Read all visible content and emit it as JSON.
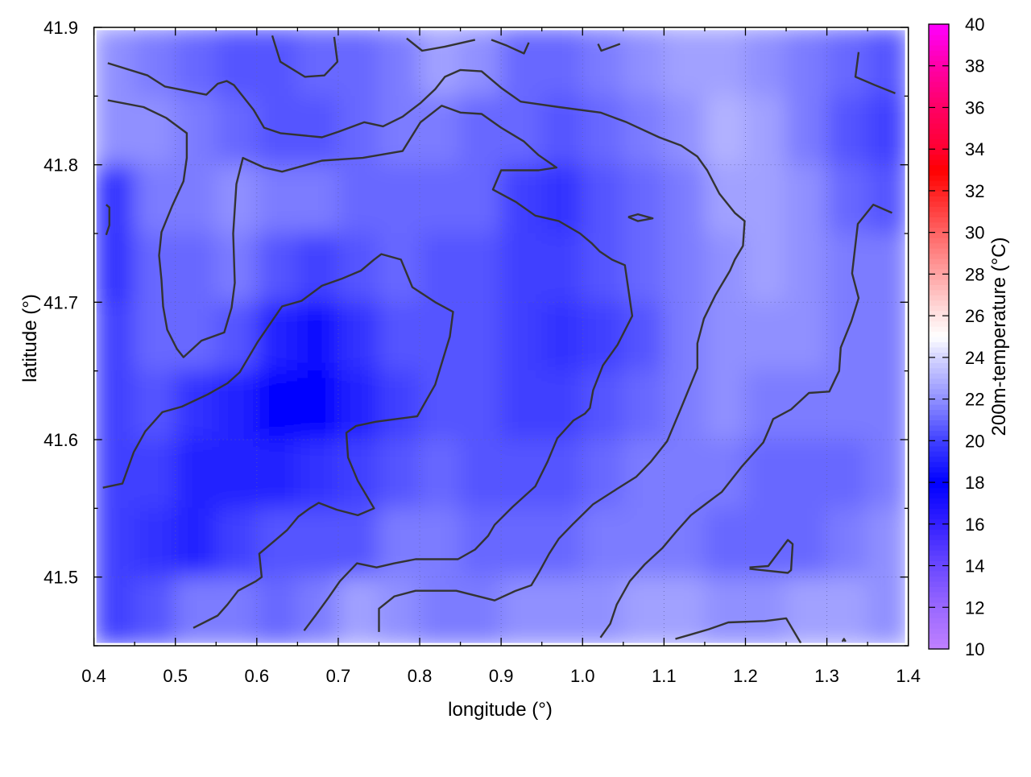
{
  "chart_data": {
    "type": "heatmap",
    "title": "",
    "xlabel": "longitude (°)",
    "ylabel": "latitude (°)",
    "colorbar_label": "200m-temperature (°C)",
    "xlim": [
      0.4,
      1.4
    ],
    "ylim": [
      41.45,
      41.9
    ],
    "clim": [
      10,
      40
    ],
    "grid": true,
    "x_ticks": [
      "0.4",
      "0.5",
      "0.6",
      "0.7",
      "0.8",
      "0.9",
      "1.0",
      "1.1",
      "1.2",
      "1.3",
      "1.4"
    ],
    "y_ticks": [
      "41.5",
      "41.6",
      "41.7",
      "41.8",
      "41.9"
    ],
    "colorbar_ticks": [
      "10",
      "12",
      "14",
      "16",
      "18",
      "20",
      "22",
      "24",
      "26",
      "28",
      "30",
      "32",
      "34",
      "36",
      "38",
      "40"
    ],
    "palette": [
      [
        10,
        "#c080ff"
      ],
      [
        12,
        "#9a68ff"
      ],
      [
        14,
        "#6a48ff"
      ],
      [
        16,
        "#3420ff"
      ],
      [
        18,
        "#0000ff"
      ],
      [
        20,
        "#4040ff"
      ],
      [
        22,
        "#9090ff"
      ],
      [
        24,
        "#d4d4ff"
      ],
      [
        25,
        "#ffffff"
      ],
      [
        26,
        "#ffe4e4"
      ],
      [
        28,
        "#ffa4a4"
      ],
      [
        30,
        "#ff6464"
      ],
      [
        32,
        "#ff2020"
      ],
      [
        33,
        "#ff0000"
      ],
      [
        34,
        "#ff0030"
      ],
      [
        36,
        "#ff0064"
      ],
      [
        38,
        "#ff00a8"
      ],
      [
        40,
        "#ff00ff"
      ]
    ],
    "grid_lon": [
      0.425,
      0.475,
      0.525,
      0.575,
      0.625,
      0.675,
      0.725,
      0.775,
      0.825,
      0.875,
      0.925,
      0.975,
      1.025,
      1.075,
      1.125,
      1.175,
      1.225,
      1.275,
      1.325,
      1.375
    ],
    "grid_lat": [
      41.875,
      41.825,
      41.775,
      41.725,
      41.675,
      41.625,
      41.575,
      41.525,
      41.475
    ],
    "values": [
      [
        22,
        21.5,
        21,
        20.5,
        20.5,
        21,
        21,
        21.5,
        22.5,
        22,
        21,
        21,
        21.5,
        22,
        22.5,
        22.5,
        22,
        21.5,
        21,
        20.5
      ],
      [
        22,
        22,
        21.5,
        21,
        20.5,
        20.5,
        21,
        21.5,
        21.5,
        21,
        21,
        20.5,
        21,
        21.5,
        22,
        23,
        22.5,
        21.5,
        20.5,
        20
      ],
      [
        19.5,
        21.5,
        21.5,
        22,
        21.5,
        21.5,
        21,
        21,
        21,
        21,
        20,
        19.5,
        20.5,
        21,
        21.5,
        22.5,
        22.5,
        22,
        21,
        20.5
      ],
      [
        19.5,
        21,
        21,
        21.5,
        20.5,
        20,
        20.5,
        21,
        20.5,
        20.5,
        20,
        20,
        20.5,
        21,
        21.5,
        22,
        22.5,
        22,
        21.5,
        21.5
      ],
      [
        20,
        21,
        21,
        20.5,
        19,
        18.5,
        19.5,
        20.5,
        20.5,
        20.5,
        20,
        19.5,
        20,
        20.5,
        21.5,
        22,
        22,
        22,
        21.5,
        21.5
      ],
      [
        20,
        20.5,
        19.5,
        19,
        18,
        18,
        19,
        20,
        20.5,
        20.5,
        20,
        20,
        20.5,
        21,
        21.5,
        22,
        21.5,
        21.5,
        21.5,
        21.5
      ],
      [
        20,
        20,
        19,
        19,
        19,
        19.5,
        20,
        20.5,
        21,
        20.5,
        20.5,
        20.5,
        21,
        21.5,
        21.5,
        21.5,
        21,
        21,
        21,
        21.5
      ],
      [
        20,
        19.5,
        19,
        20,
        20.5,
        20.5,
        20.5,
        21.5,
        21.5,
        21,
        21,
        21,
        21.5,
        21.5,
        21.5,
        21,
        21,
        21,
        21.5,
        22
      ],
      [
        20,
        20.5,
        21.5,
        21.5,
        21,
        21.5,
        22.5,
        22,
        21.5,
        21.5,
        22,
        22,
        22,
        22.5,
        22.5,
        22,
        22,
        22.5,
        22.5,
        22
      ]
    ],
    "contour_color": "#333333",
    "contours": [
      [
        [
          0.417,
          41.874
        ],
        [
          0.466,
          41.865
        ],
        [
          0.487,
          41.857
        ],
        [
          0.538,
          41.851
        ],
        [
          0.552,
          41.859
        ],
        [
          0.563,
          41.861
        ],
        [
          0.572,
          41.858
        ],
        [
          0.596,
          41.84
        ],
        [
          0.609,
          41.827
        ],
        [
          0.629,
          41.823
        ],
        [
          0.68,
          41.82
        ],
        [
          0.7,
          41.824
        ],
        [
          0.732,
          41.831
        ],
        [
          0.755,
          41.828
        ],
        [
          0.779,
          41.835
        ],
        [
          0.801,
          41.845
        ],
        [
          0.819,
          41.855
        ],
        [
          0.831,
          41.864
        ],
        [
          0.85,
          41.869
        ],
        [
          0.876,
          41.868
        ],
        [
          0.9,
          41.856
        ],
        [
          0.924,
          41.846
        ],
        [
          0.971,
          41.842
        ],
        [
          1.022,
          41.838
        ],
        [
          1.054,
          41.831
        ],
        [
          1.094,
          41.82
        ],
        [
          1.121,
          41.814
        ],
        [
          1.141,
          41.806
        ],
        [
          1.153,
          41.796
        ],
        [
          1.168,
          41.779
        ],
        [
          1.187,
          41.765
        ],
        [
          1.199,
          41.759
        ],
        [
          1.197,
          41.741
        ],
        [
          1.187,
          41.731
        ],
        [
          1.181,
          41.723
        ],
        [
          1.163,
          41.705
        ],
        [
          1.149,
          41.688
        ],
        [
          1.141,
          41.67
        ],
        [
          1.141,
          41.652
        ],
        [
          1.121,
          41.623
        ],
        [
          1.104,
          41.599
        ],
        [
          1.084,
          41.584
        ],
        [
          1.066,
          41.573
        ],
        [
          1.042,
          41.564
        ],
        [
          1.013,
          41.553
        ],
        [
          0.989,
          41.539
        ],
        [
          0.971,
          41.528
        ],
        [
          0.959,
          41.517
        ],
        [
          0.947,
          41.504
        ],
        [
          0.937,
          41.494
        ],
        [
          0.918,
          41.49
        ],
        [
          0.892,
          41.483
        ],
        [
          0.845,
          41.49
        ],
        [
          0.795,
          41.49
        ],
        [
          0.769,
          41.486
        ],
        [
          0.75,
          41.477
        ],
        [
          0.75,
          41.46
        ]
      ],
      [
        [
          0.417,
          41.847
        ],
        [
          0.461,
          41.842
        ],
        [
          0.489,
          41.834
        ],
        [
          0.514,
          41.823
        ],
        [
          0.514,
          41.805
        ],
        [
          0.51,
          41.788
        ],
        [
          0.496,
          41.77
        ],
        [
          0.483,
          41.751
        ],
        [
          0.48,
          41.734
        ],
        [
          0.483,
          41.716
        ],
        [
          0.485,
          41.697
        ],
        [
          0.49,
          41.68
        ],
        [
          0.502,
          41.666
        ],
        [
          0.51,
          41.66
        ],
        [
          0.532,
          41.672
        ],
        [
          0.56,
          41.678
        ],
        [
          0.569,
          41.696
        ],
        [
          0.573,
          41.714
        ],
        [
          0.571,
          41.75
        ],
        [
          0.575,
          41.786
        ],
        [
          0.583,
          41.805
        ],
        [
          0.609,
          41.798
        ],
        [
          0.631,
          41.795
        ],
        [
          0.68,
          41.803
        ],
        [
          0.73,
          41.805
        ],
        [
          0.779,
          41.81
        ],
        [
          0.801,
          41.831
        ],
        [
          0.827,
          41.843
        ],
        [
          0.85,
          41.838
        ],
        [
          0.876,
          41.837
        ],
        [
          0.9,
          41.827
        ],
        [
          0.928,
          41.817
        ],
        [
          0.946,
          41.807
        ],
        [
          0.968,
          41.798
        ],
        [
          0.946,
          41.796
        ],
        [
          0.9,
          41.796
        ],
        [
          0.89,
          41.782
        ],
        [
          0.918,
          41.773
        ],
        [
          0.942,
          41.763
        ],
        [
          0.971,
          41.759
        ],
        [
          0.997,
          41.75
        ],
        [
          1.011,
          41.743
        ],
        [
          1.021,
          41.737
        ],
        [
          1.036,
          41.731
        ],
        [
          1.052,
          41.727
        ],
        [
          1.061,
          41.69
        ],
        [
          1.043,
          41.669
        ],
        [
          1.025,
          41.654
        ],
        [
          1.013,
          41.636
        ],
        [
          1.009,
          41.623
        ],
        [
          1.003,
          41.619
        ],
        [
          0.989,
          41.614
        ],
        [
          0.969,
          41.601
        ],
        [
          0.957,
          41.584
        ],
        [
          0.942,
          41.566
        ],
        [
          0.914,
          41.551
        ],
        [
          0.892,
          41.538
        ],
        [
          0.884,
          41.53
        ],
        [
          0.868,
          41.52
        ],
        [
          0.847,
          41.513
        ],
        [
          0.795,
          41.513
        ],
        [
          0.769,
          41.51
        ],
        [
          0.747,
          41.507
        ],
        [
          0.723,
          41.51
        ],
        [
          0.702,
          41.497
        ],
        [
          0.688,
          41.485
        ],
        [
          0.672,
          41.472
        ],
        [
          0.658,
          41.461
        ]
      ],
      [
        [
          0.411,
          41.565
        ],
        [
          0.435,
          41.568
        ],
        [
          0.449,
          41.591
        ],
        [
          0.463,
          41.606
        ],
        [
          0.484,
          41.62
        ],
        [
          0.508,
          41.624
        ],
        [
          0.54,
          41.633
        ],
        [
          0.564,
          41.641
        ],
        [
          0.579,
          41.649
        ],
        [
          0.601,
          41.671
        ],
        [
          0.631,
          41.697
        ],
        [
          0.655,
          41.701
        ],
        [
          0.68,
          41.712
        ],
        [
          0.704,
          41.717
        ],
        [
          0.728,
          41.723
        ],
        [
          0.744,
          41.731
        ],
        [
          0.753,
          41.735
        ],
        [
          0.777,
          41.731
        ],
        [
          0.791,
          41.711
        ],
        [
          0.819,
          41.7
        ],
        [
          0.841,
          41.693
        ],
        [
          0.837,
          41.675
        ],
        [
          0.819,
          41.64
        ],
        [
          0.797,
          41.617
        ],
        [
          0.771,
          41.615
        ],
        [
          0.746,
          41.613
        ],
        [
          0.722,
          41.61
        ],
        [
          0.71,
          41.605
        ],
        [
          0.712,
          41.587
        ],
        [
          0.724,
          41.57
        ],
        [
          0.744,
          41.55
        ],
        [
          0.724,
          41.545
        ],
        [
          0.698,
          41.549
        ],
        [
          0.676,
          41.554
        ],
        [
          0.665,
          41.55
        ],
        [
          0.651,
          41.544
        ],
        [
          0.637,
          41.534
        ],
        [
          0.621,
          41.526
        ],
        [
          0.603,
          41.517
        ],
        [
          0.606,
          41.5
        ],
        [
          0.599,
          41.497
        ],
        [
          0.577,
          41.49
        ],
        [
          0.564,
          41.48
        ],
        [
          0.552,
          41.472
        ],
        [
          0.522,
          41.463
        ]
      ],
      [
        [
          1.38,
          41.765
        ],
        [
          1.357,
          41.771
        ],
        [
          1.338,
          41.757
        ],
        [
          1.331,
          41.721
        ],
        [
          1.339,
          41.703
        ],
        [
          1.33,
          41.686
        ],
        [
          1.317,
          41.667
        ],
        [
          1.315,
          41.65
        ],
        [
          1.303,
          41.635
        ],
        [
          1.278,
          41.634
        ],
        [
          1.256,
          41.622
        ],
        [
          1.234,
          41.615
        ],
        [
          1.23,
          41.609
        ],
        [
          1.222,
          41.598
        ],
        [
          1.195,
          41.58
        ],
        [
          1.171,
          41.562
        ],
        [
          1.153,
          41.554
        ],
        [
          1.133,
          41.545
        ],
        [
          1.115,
          41.533
        ],
        [
          1.098,
          41.521
        ],
        [
          1.076,
          41.509
        ],
        [
          1.058,
          41.497
        ],
        [
          1.042,
          41.48
        ],
        [
          1.034,
          41.466
        ],
        [
          1.022,
          41.456
        ]
      ],
      [
        [
          0.619,
          41.894
        ],
        [
          0.629,
          41.875
        ],
        [
          0.659,
          41.864
        ],
        [
          0.683,
          41.865
        ],
        [
          0.699,
          41.875
        ],
        [
          0.695,
          41.893
        ]
      ],
      [
        [
          0.784,
          41.892
        ],
        [
          0.803,
          41.883
        ],
        [
          0.831,
          41.886
        ],
        [
          0.868,
          41.891
        ]
      ],
      [
        [
          0.888,
          41.891
        ],
        [
          0.906,
          41.887
        ],
        [
          0.928,
          41.881
        ],
        [
          0.934,
          41.889
        ]
      ],
      [
        [
          1.019,
          41.888
        ],
        [
          1.023,
          41.883
        ],
        [
          1.046,
          41.888
        ]
      ],
      [
        [
          1.339,
          41.882
        ],
        [
          1.335,
          41.864
        ],
        [
          1.359,
          41.858
        ],
        [
          1.384,
          41.852
        ]
      ],
      [
        [
          0.415,
          41.771
        ],
        [
          0.419,
          41.769
        ],
        [
          0.419,
          41.756
        ],
        [
          0.415,
          41.749
        ]
      ],
      [
        [
          1.056,
          41.762
        ],
        [
          1.068,
          41.764
        ],
        [
          1.086,
          41.761
        ],
        [
          1.068,
          41.759
        ],
        [
          1.056,
          41.762
        ]
      ],
      [
        [
          1.205,
          41.507
        ],
        [
          1.228,
          41.508
        ],
        [
          1.252,
          41.527
        ],
        [
          1.258,
          41.524
        ],
        [
          1.256,
          41.505
        ],
        [
          1.252,
          41.503
        ],
        [
          1.205,
          41.506
        ]
      ],
      [
        [
          1.114,
          41.455
        ],
        [
          1.132,
          41.458
        ],
        [
          1.155,
          41.462
        ],
        [
          1.179,
          41.467
        ],
        [
          1.224,
          41.468
        ],
        [
          1.25,
          41.47
        ],
        [
          1.268,
          41.452
        ]
      ],
      [
        [
          1.319,
          41.453
        ],
        [
          1.321,
          41.455
        ],
        [
          1.323,
          41.453
        ]
      ]
    ]
  }
}
